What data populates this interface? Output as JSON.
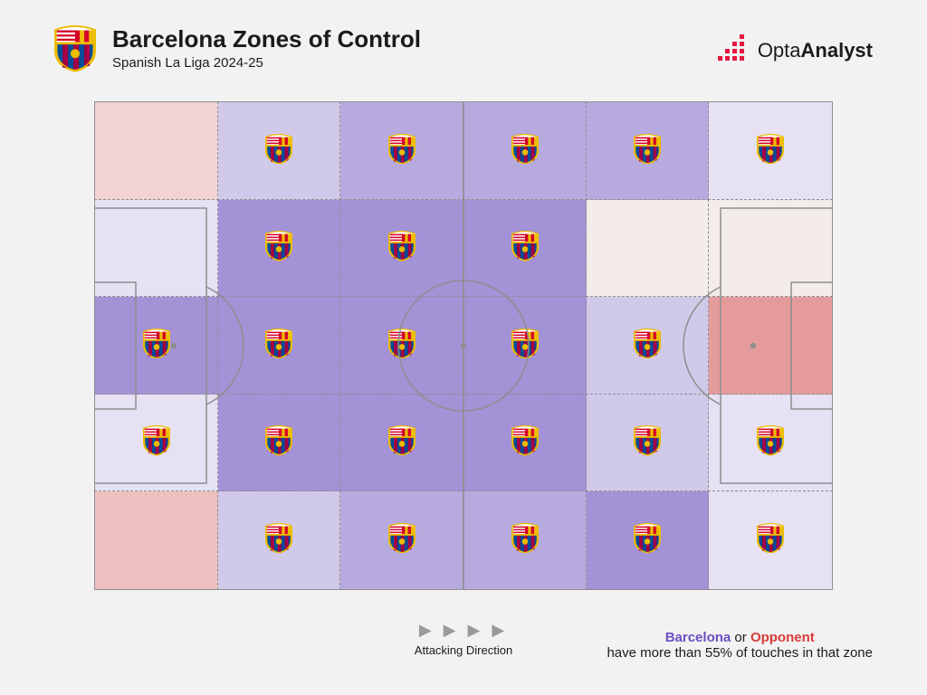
{
  "page": {
    "background": "#f2f2f2",
    "text_color": "#1b1b1b"
  },
  "header": {
    "title": "Barcelona Zones of Control",
    "subtitle": "Spanish La Liga 2024-25"
  },
  "brand": {
    "name_light": "Opta",
    "name_bold": "Analyst",
    "accent": "#e5173f",
    "text": "#1b1b1b"
  },
  "club_badge": {
    "name": "fc-barcelona",
    "primary": "#a50044",
    "secondary": "#004d98",
    "gold": "#edbb00"
  },
  "pitch": {
    "line_color": "#8e8e8e",
    "line_width": 1.5,
    "dash": "6,5",
    "cols": 6,
    "rows": 5
  },
  "palette": {
    "team_strong": "#a392d6",
    "team_mid": "#b7aadf",
    "team_light": "#d1c9ea",
    "team_pale": "#e6e1f3",
    "opp_strong": "#e59b9b",
    "opp_mid": "#eec0c0",
    "opp_light": "#f1d3d4",
    "neutral": "#f3ece8"
  },
  "zones": {
    "comment": "6 columns × 5 rows, left→right = defence→attack, top→bottom. color = palette key, badge = show club crest",
    "cells": [
      {
        "r": 0,
        "c": 0,
        "color": "opp_light",
        "badge": false
      },
      {
        "r": 0,
        "c": 1,
        "color": "team_light",
        "badge": true
      },
      {
        "r": 0,
        "c": 2,
        "color": "team_mid",
        "badge": true
      },
      {
        "r": 0,
        "c": 3,
        "color": "team_mid",
        "badge": true
      },
      {
        "r": 0,
        "c": 4,
        "color": "team_mid",
        "badge": true
      },
      {
        "r": 0,
        "c": 5,
        "color": "team_pale",
        "badge": true
      },
      {
        "r": 1,
        "c": 0,
        "color": "team_pale",
        "badge": false
      },
      {
        "r": 1,
        "c": 1,
        "color": "team_strong",
        "badge": true
      },
      {
        "r": 1,
        "c": 2,
        "color": "team_strong",
        "badge": true
      },
      {
        "r": 1,
        "c": 3,
        "color": "team_strong",
        "badge": true
      },
      {
        "r": 1,
        "c": 4,
        "color": "neutral",
        "badge": false
      },
      {
        "r": 1,
        "c": 5,
        "color": "neutral",
        "badge": false
      },
      {
        "r": 2,
        "c": 0,
        "color": "team_strong",
        "badge": true
      },
      {
        "r": 2,
        "c": 1,
        "color": "team_strong",
        "badge": true
      },
      {
        "r": 2,
        "c": 2,
        "color": "team_strong",
        "badge": true
      },
      {
        "r": 2,
        "c": 3,
        "color": "team_strong",
        "badge": true
      },
      {
        "r": 2,
        "c": 4,
        "color": "team_light",
        "badge": true
      },
      {
        "r": 2,
        "c": 5,
        "color": "opp_strong",
        "badge": false
      },
      {
        "r": 3,
        "c": 0,
        "color": "team_pale",
        "badge": true
      },
      {
        "r": 3,
        "c": 1,
        "color": "team_strong",
        "badge": true
      },
      {
        "r": 3,
        "c": 2,
        "color": "team_strong",
        "badge": true
      },
      {
        "r": 3,
        "c": 3,
        "color": "team_strong",
        "badge": true
      },
      {
        "r": 3,
        "c": 4,
        "color": "team_light",
        "badge": true
      },
      {
        "r": 3,
        "c": 5,
        "color": "team_pale",
        "badge": true
      },
      {
        "r": 4,
        "c": 0,
        "color": "opp_mid",
        "badge": false
      },
      {
        "r": 4,
        "c": 1,
        "color": "team_light",
        "badge": true
      },
      {
        "r": 4,
        "c": 2,
        "color": "team_mid",
        "badge": true
      },
      {
        "r": 4,
        "c": 3,
        "color": "team_mid",
        "badge": true
      },
      {
        "r": 4,
        "c": 4,
        "color": "team_strong",
        "badge": true
      },
      {
        "r": 4,
        "c": 5,
        "color": "team_pale",
        "badge": true
      }
    ]
  },
  "footer": {
    "direction_label": "Attacking Direction",
    "arrow_glyph": "▶",
    "arrow_count": 4,
    "arrow_color": "#9a9a9a"
  },
  "legend": {
    "team_label": "Barcelona",
    "team_color": "#6a4fc1",
    "connector": " or ",
    "opp_label": "Opponent",
    "opp_color": "#d93a3a",
    "tail": "have more than 55% of touches in that zone"
  }
}
